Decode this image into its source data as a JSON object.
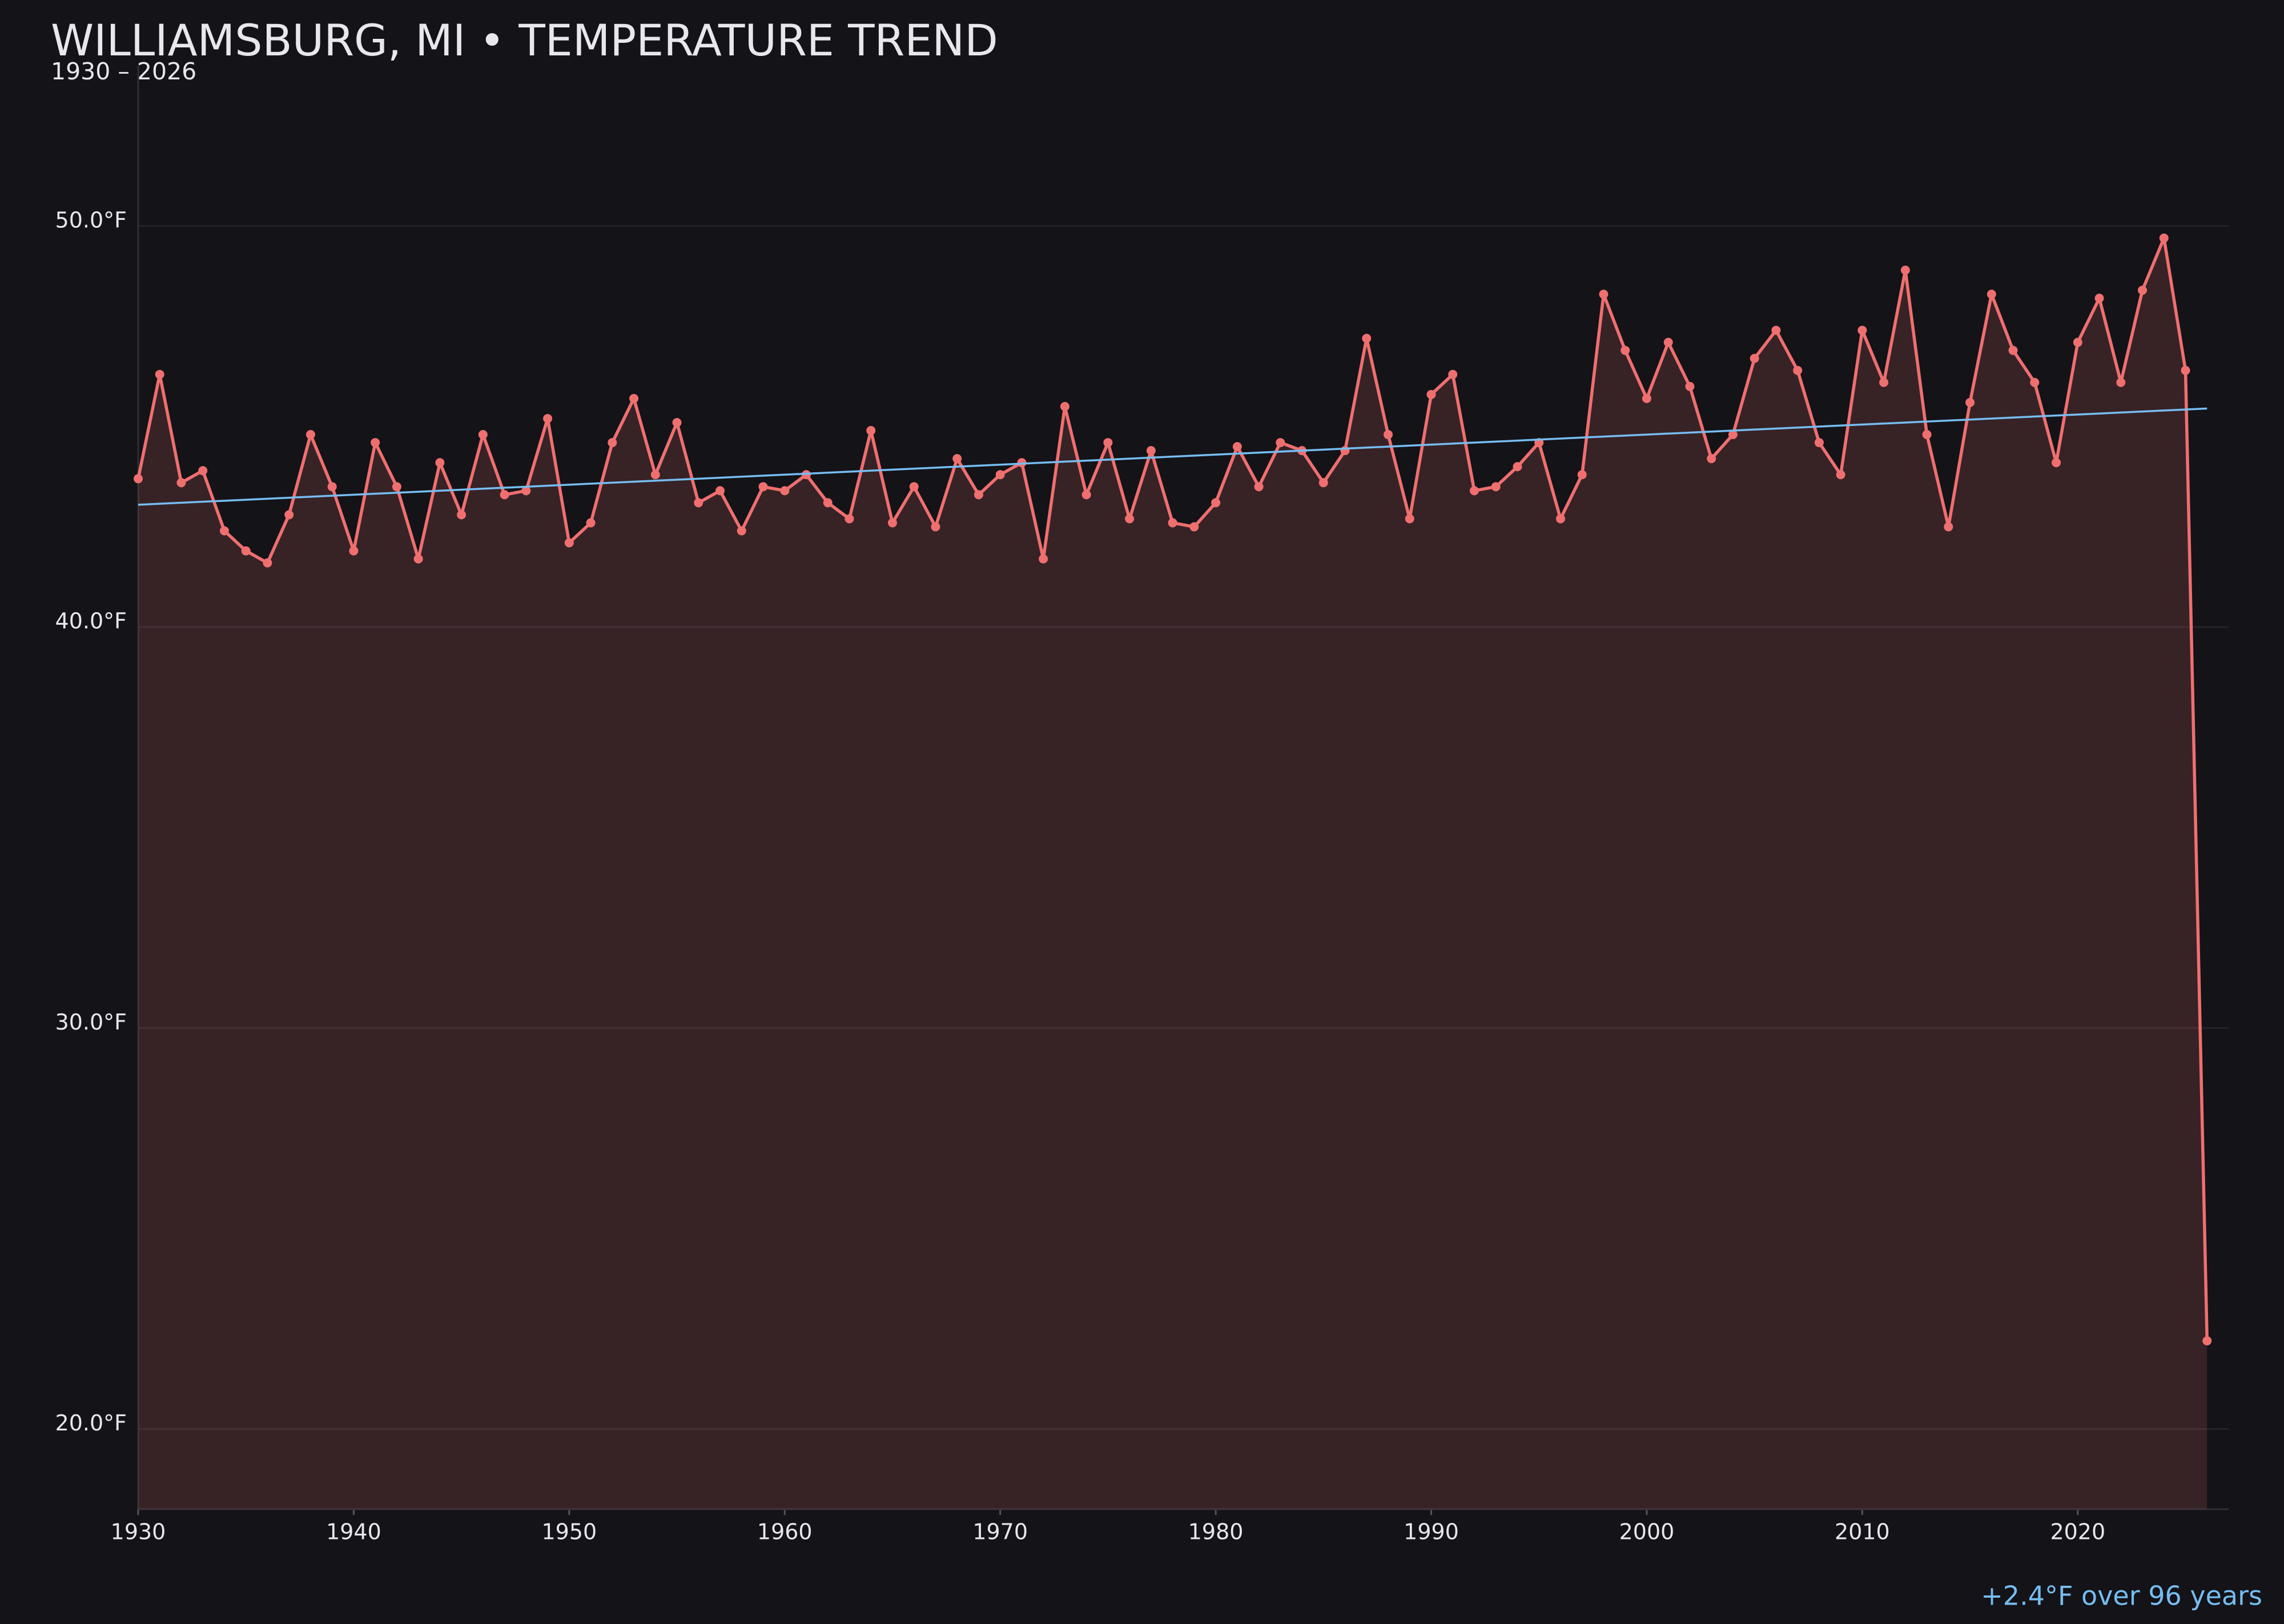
{
  "chart_data": {
    "type": "line",
    "title": "WILLIAMSBURG, MI • TEMPERATURE TREND",
    "subtitle": "1930 – 2026",
    "annotation": "+2.4°F over 96 years",
    "x": [
      1930,
      1931,
      1932,
      1933,
      1934,
      1935,
      1936,
      1937,
      1938,
      1939,
      1940,
      1941,
      1942,
      1943,
      1944,
      1945,
      1946,
      1947,
      1948,
      1949,
      1950,
      1951,
      1952,
      1953,
      1954,
      1955,
      1956,
      1957,
      1958,
      1959,
      1960,
      1961,
      1962,
      1963,
      1964,
      1965,
      1966,
      1967,
      1968,
      1969,
      1970,
      1971,
      1972,
      1973,
      1974,
      1975,
      1976,
      1977,
      1978,
      1979,
      1980,
      1981,
      1982,
      1983,
      1984,
      1985,
      1986,
      1987,
      1988,
      1989,
      1990,
      1991,
      1992,
      1993,
      1994,
      1995,
      1996,
      1997,
      1998,
      1999,
      2000,
      2001,
      2002,
      2003,
      2004,
      2005,
      2006,
      2007,
      2008,
      2009,
      2010,
      2011,
      2012,
      2013,
      2014,
      2015,
      2016,
      2017,
      2018,
      2019,
      2020,
      2021,
      2022,
      2023,
      2024,
      2025,
      2026
    ],
    "series": [
      {
        "color": "#ef6f6f",
        "area": true,
        "markers": true,
        "values": [
          43.7,
          46.3,
          43.6,
          43.9,
          42.4,
          41.9,
          41.6,
          42.8,
          44.8,
          43.5,
          41.9,
          44.6,
          43.5,
          41.7,
          44.1,
          42.8,
          44.8,
          43.3,
          43.4,
          45.2,
          42.1,
          42.6,
          44.6,
          45.7,
          43.8,
          45.1,
          43.1,
          43.4,
          42.4,
          43.5,
          43.4,
          43.8,
          43.1,
          42.7,
          44.9,
          42.6,
          43.5,
          42.5,
          44.2,
          43.3,
          43.8,
          44.1,
          41.7,
          45.5,
          43.3,
          44.6,
          42.7,
          44.4,
          42.6,
          42.5,
          43.1,
          44.5,
          43.5,
          44.6,
          44.4,
          43.6,
          44.4,
          47.2,
          44.8,
          42.7,
          45.8,
          46.3,
          43.4,
          43.5,
          44.0,
          44.6,
          42.7,
          43.8,
          48.3,
          46.9,
          45.7,
          47.1,
          46.0,
          44.2,
          44.8,
          46.7,
          47.4,
          46.4,
          44.6,
          43.8,
          47.4,
          46.1,
          48.9,
          44.8,
          42.5,
          45.6,
          48.3,
          46.9,
          46.1,
          44.1,
          47.1,
          48.2,
          46.1,
          48.4,
          49.7,
          46.4,
          22.2
        ]
      },
      {
        "color": "#76bdf0",
        "x": [
          1930,
          2026
        ],
        "values": [
          43.05,
          45.45
        ]
      }
    ],
    "xlim": [
      1930,
      2027
    ],
    "ylim": [
      18,
      54
    ],
    "xticks": [
      1930,
      1940,
      1950,
      1960,
      1970,
      1980,
      1990,
      2000,
      2010,
      2020
    ],
    "yticks": [
      {
        "value": 20,
        "label": "20.0°F"
      },
      {
        "value": 30,
        "label": "30.0°F"
      },
      {
        "value": 40,
        "label": "40.0°F"
      },
      {
        "value": 50,
        "label": "50.0°F"
      }
    ],
    "grid": true
  }
}
